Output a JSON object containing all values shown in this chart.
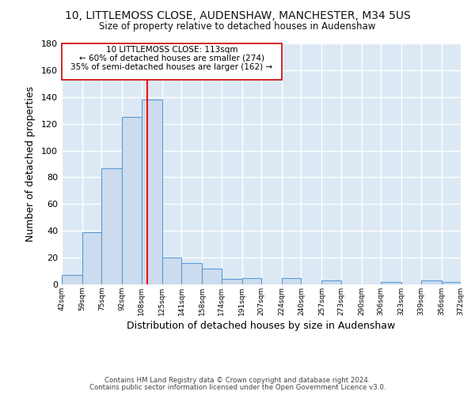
{
  "title": "10, LITTLEMOSS CLOSE, AUDENSHAW, MANCHESTER, M34 5US",
  "subtitle": "Size of property relative to detached houses in Audenshaw",
  "xlabel": "Distribution of detached houses by size in Audenshaw",
  "ylabel": "Number of detached properties",
  "bar_color": "#ccdcee",
  "bar_edge_color": "#5b9bd5",
  "figure_background": "#ffffff",
  "plot_background": "#dce9f5",
  "grid_color": "#ffffff",
  "red_line_x": 113,
  "annotation_title": "10 LITTLEMOSS CLOSE: 113sqm",
  "annotation_line1": "← 60% of detached houses are smaller (274)",
  "annotation_line2": "35% of semi-detached houses are larger (162) →",
  "footer_line1": "Contains HM Land Registry data © Crown copyright and database right 2024.",
  "footer_line2": "Contains public sector information licensed under the Open Government Licence v3.0.",
  "bin_edges": [
    42,
    59,
    75,
    92,
    108,
    125,
    141,
    158,
    174,
    191,
    207,
    224,
    240,
    257,
    273,
    290,
    306,
    323,
    339,
    356,
    372
  ],
  "bin_counts": [
    7,
    39,
    87,
    125,
    138,
    20,
    16,
    12,
    4,
    5,
    0,
    5,
    0,
    3,
    0,
    0,
    2,
    0,
    3,
    2
  ],
  "tick_labels": [
    "42sqm",
    "59sqm",
    "75sqm",
    "92sqm",
    "108sqm",
    "125sqm",
    "141sqm",
    "158sqm",
    "174sqm",
    "191sqm",
    "207sqm",
    "224sqm",
    "240sqm",
    "257sqm",
    "273sqm",
    "290sqm",
    "306sqm",
    "323sqm",
    "339sqm",
    "356sqm",
    "372sqm"
  ],
  "ylim": [
    0,
    180
  ],
  "yticks": [
    0,
    20,
    40,
    60,
    80,
    100,
    120,
    140,
    160,
    180
  ]
}
